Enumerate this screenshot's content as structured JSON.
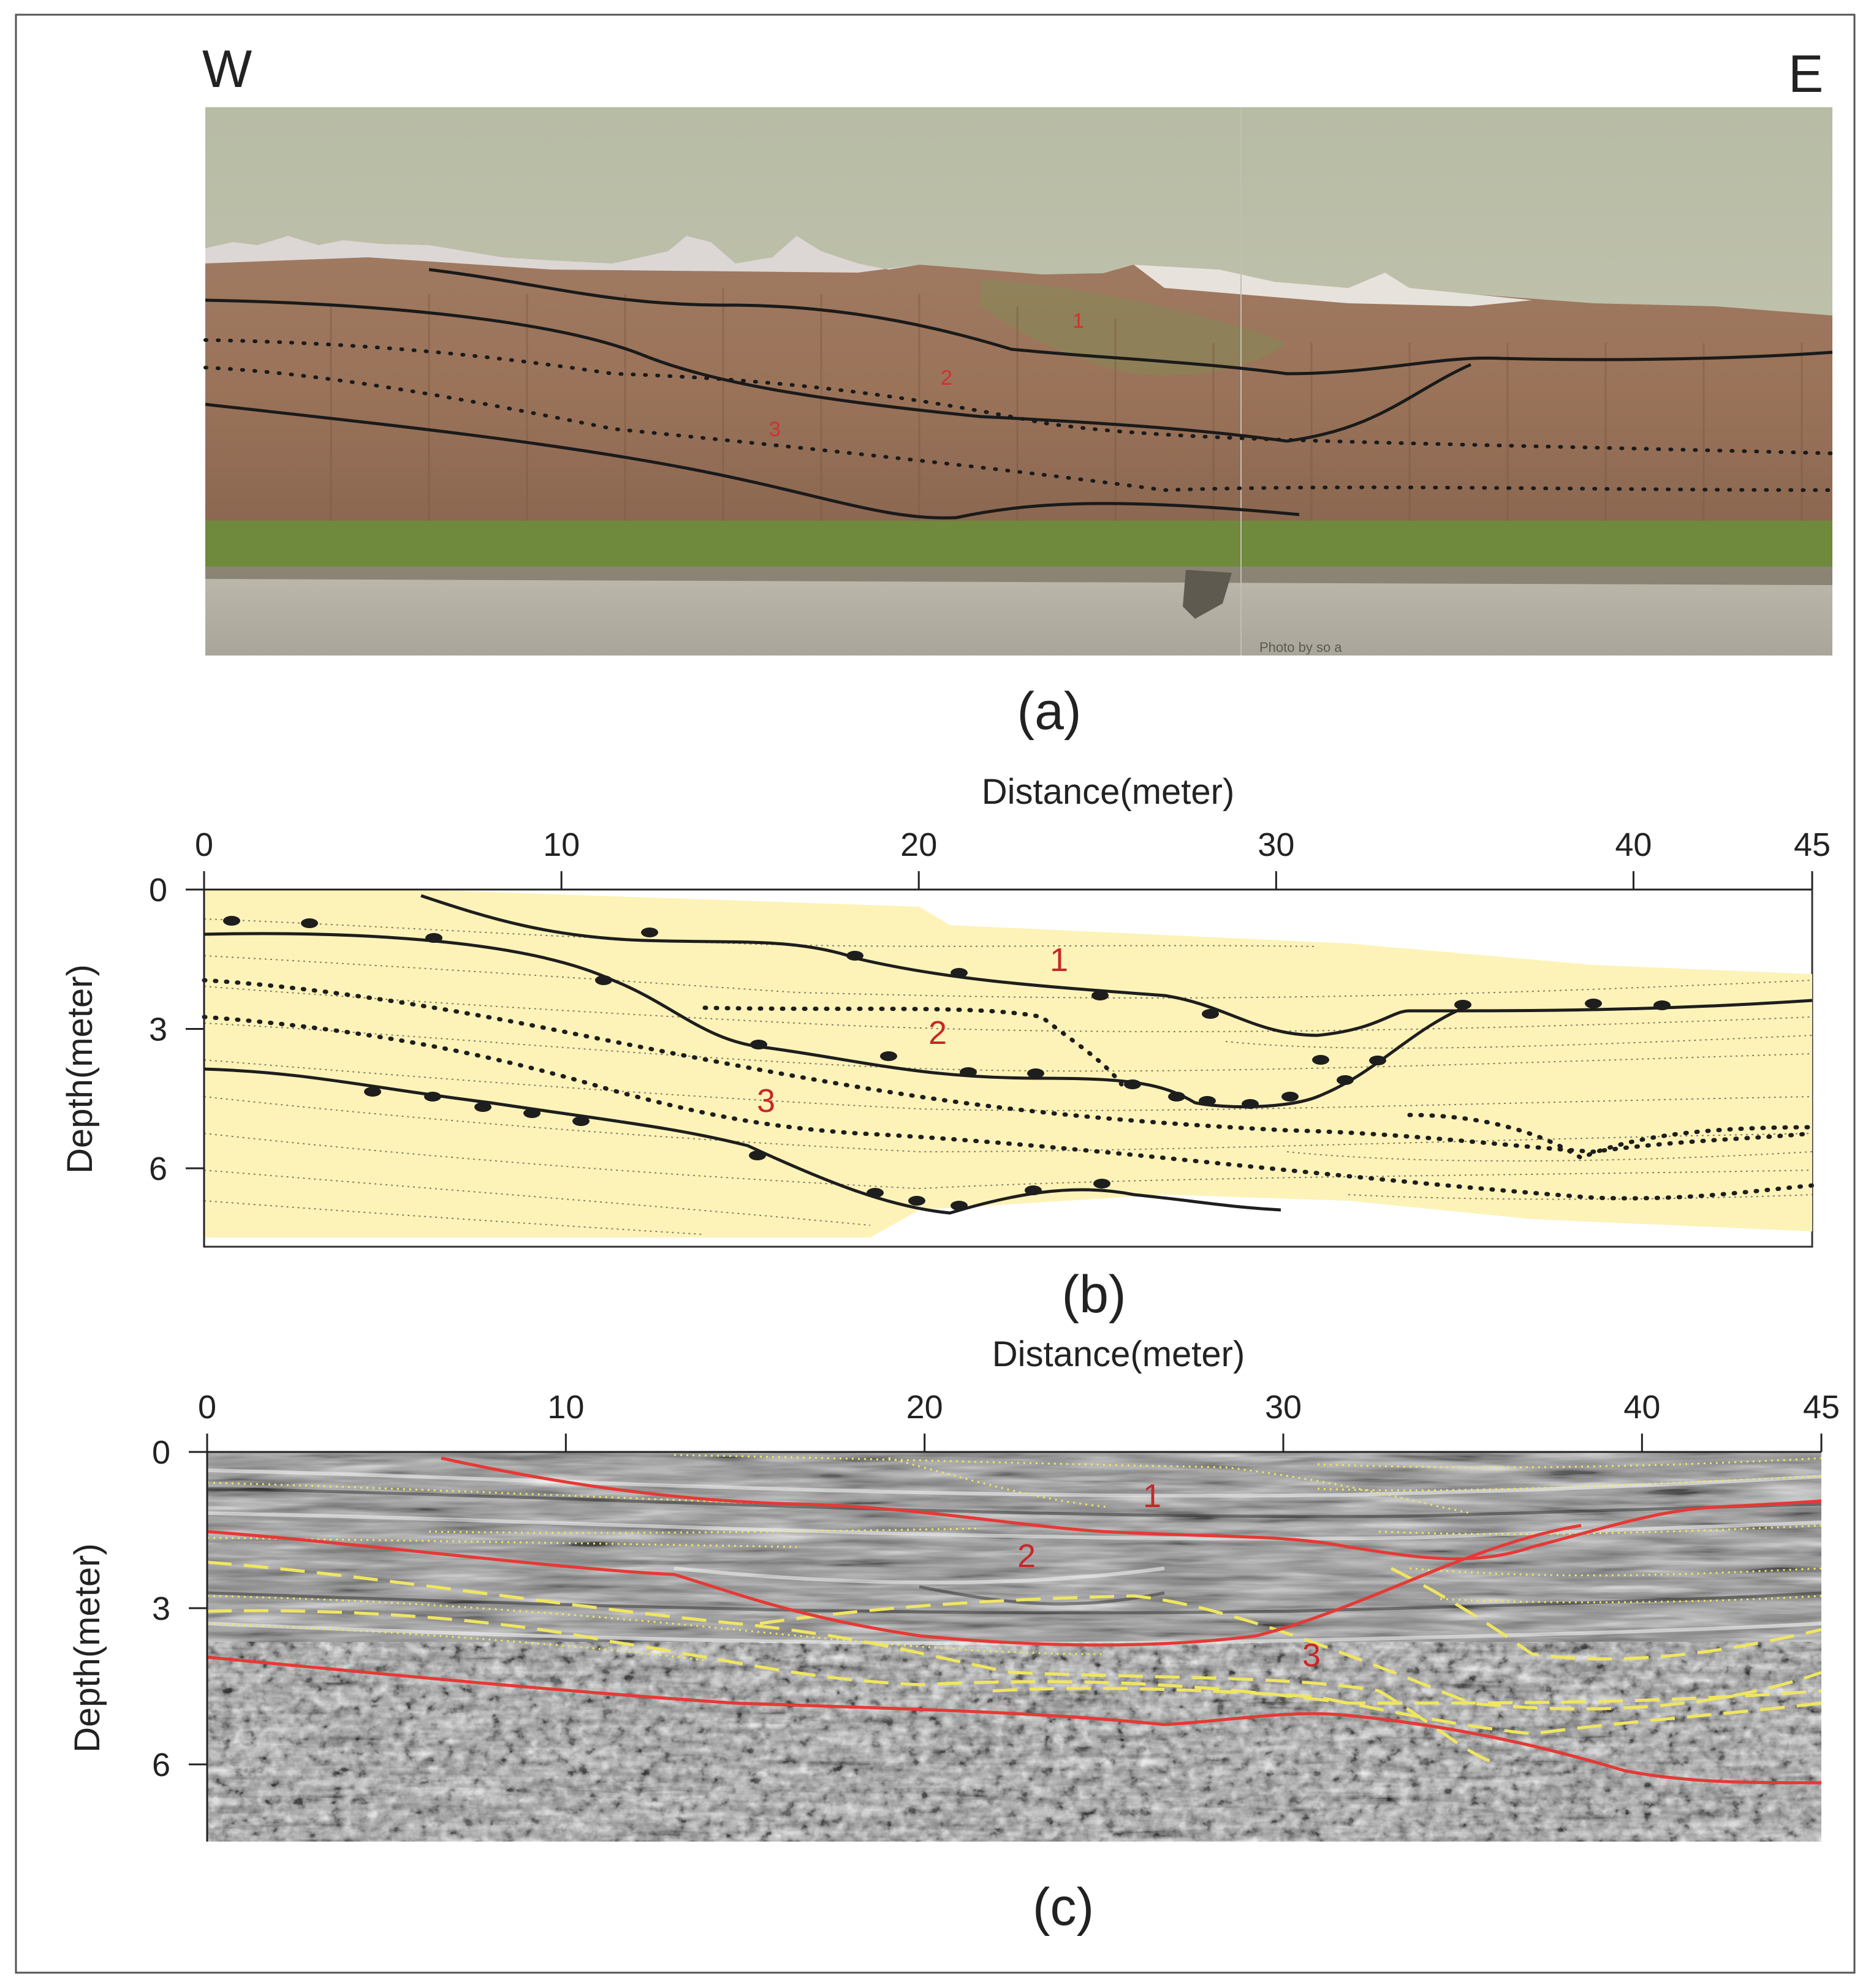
{
  "panel_a": {
    "caption": "(a)",
    "west_label": "W",
    "east_label": "E",
    "unit_labels": [
      "1",
      "2",
      "3"
    ],
    "stamp_text": "Photo by so a"
  },
  "panel_b": {
    "caption": "(b)",
    "x_axis_title": "Distance(meter)",
    "y_axis_title": "Depth(meter)",
    "x_ticks": [
      0,
      10,
      20,
      30,
      40,
      45
    ],
    "y_ticks": [
      0,
      3,
      6
    ],
    "unit_labels": [
      "1",
      "2",
      "3"
    ],
    "fill_color": "#fdf3b8",
    "line_color": "#222222"
  },
  "panel_c": {
    "caption": "(c)",
    "x_axis_title": "Distance(meter)",
    "y_axis_title": "Depth(meter)",
    "x_ticks": [
      0,
      10,
      20,
      30,
      40,
      45
    ],
    "y_ticks": [
      0,
      3,
      6
    ],
    "unit_labels": [
      "1",
      "2",
      "3"
    ],
    "boundary_color": "#e53935",
    "dash_color": "#f0e660"
  }
}
